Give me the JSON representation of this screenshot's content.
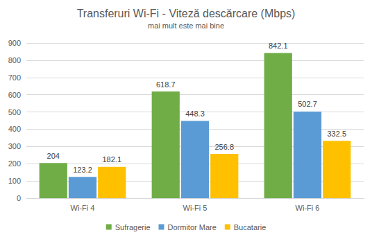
{
  "chart_data": {
    "type": "bar",
    "title": "Transferuri Wi-Fi - Viteză descărcare (Mbps)",
    "subtitle": "mai mult este mai bine",
    "categories": [
      "Wi-Fi 4",
      "Wi-Fi 5",
      "Wi-Fi 6"
    ],
    "series": [
      {
        "name": "Sufragerie",
        "color": "#70ad47",
        "values": [
          204,
          618.7,
          842.1
        ]
      },
      {
        "name": "Dormitor Mare",
        "color": "#5b9bd5",
        "values": [
          123.2,
          448.3,
          502.7
        ]
      },
      {
        "name": "Bucatarie",
        "color": "#ffc000",
        "values": [
          182.1,
          256.8,
          332.5
        ]
      }
    ],
    "ylim": [
      0,
      900
    ],
    "yticks": [
      0,
      100,
      200,
      300,
      400,
      500,
      600,
      700,
      800,
      900
    ],
    "grid": true,
    "legend": "bottom",
    "data_labels": true
  }
}
